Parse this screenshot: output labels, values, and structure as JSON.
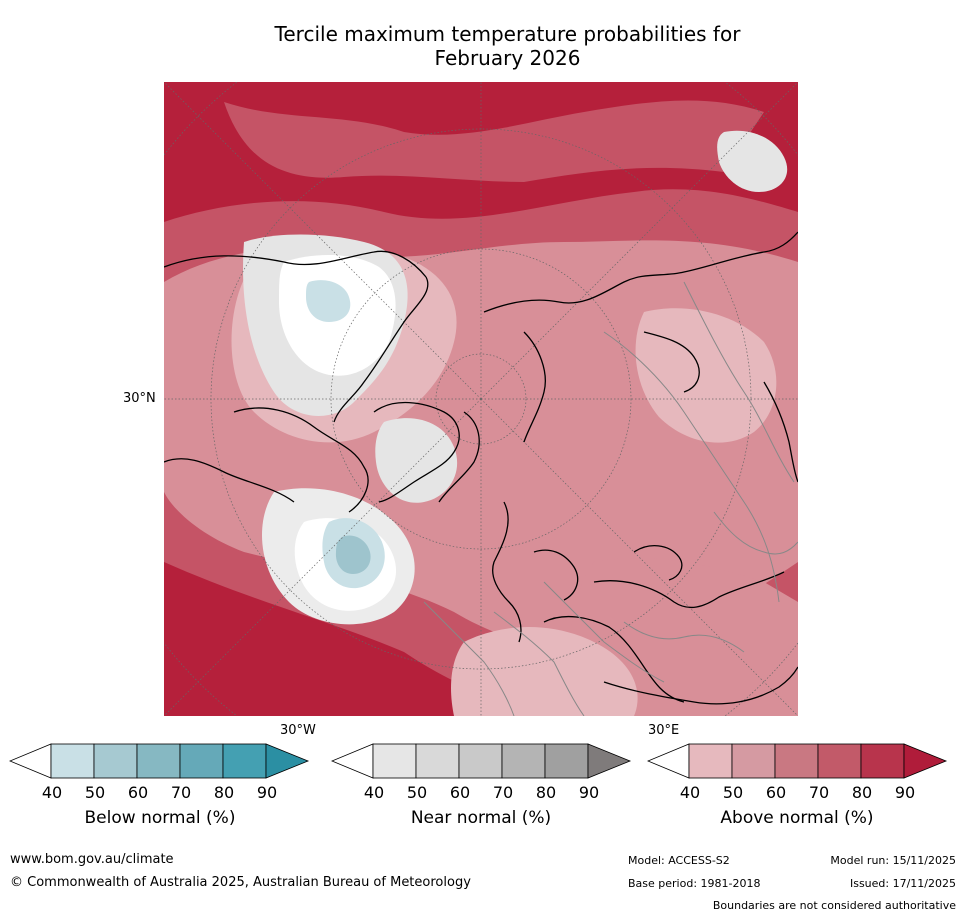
{
  "title_line1": "Tercile maximum temperature probabilities for",
  "title_line2": "February 2026",
  "map": {
    "projection": "north-polar-stereographic",
    "lat_labels": [
      "30°N"
    ],
    "lon_labels": [
      "30°W",
      "30°E"
    ],
    "colors": {
      "above_dark": "#b5203b",
      "above_mid": "#c55466",
      "above_light": "#d88f98",
      "above_pale": "#e6b8bd",
      "near": "#e5e5e5",
      "below_light": "#c9e0e6",
      "below_mid": "#9ec4cd"
    }
  },
  "colorbars": [
    {
      "label": "Below normal (%)",
      "ticks": [
        "40",
        "50",
        "60",
        "70",
        "80",
        "90"
      ],
      "colors": [
        "#ffffff",
        "#c9e0e6",
        "#a6c9d1",
        "#86b8c2",
        "#65a9b8",
        "#44a0b2",
        "#2b8fa3"
      ]
    },
    {
      "label": "Near normal (%)",
      "ticks": [
        "40",
        "50",
        "60",
        "70",
        "80",
        "90"
      ],
      "colors": [
        "#ffffff",
        "#e6e6e6",
        "#d9d9d9",
        "#c9c9c9",
        "#b4b4b4",
        "#a0a0a0",
        "#7f7b7b"
      ]
    },
    {
      "label": "Above normal (%)",
      "ticks": [
        "40",
        "50",
        "60",
        "70",
        "80",
        "90"
      ],
      "colors": [
        "#ffffff",
        "#e6b9be",
        "#d59aa2",
        "#c97882",
        "#c25a69",
        "#b8344c",
        "#b01c3a"
      ]
    }
  ],
  "footer": {
    "url": "www.bom.gov.au/climate",
    "copyright": "© Commonwealth of Australia 2025, Australian Bureau of Meteorology",
    "model": "Model: ACCESS-S2",
    "base_period": "Base period: 1981-2018",
    "model_run": "Model run: 15/11/2025",
    "issued": "Issued: 17/11/2025",
    "disclaimer": "Boundaries are not considered authoritative"
  }
}
